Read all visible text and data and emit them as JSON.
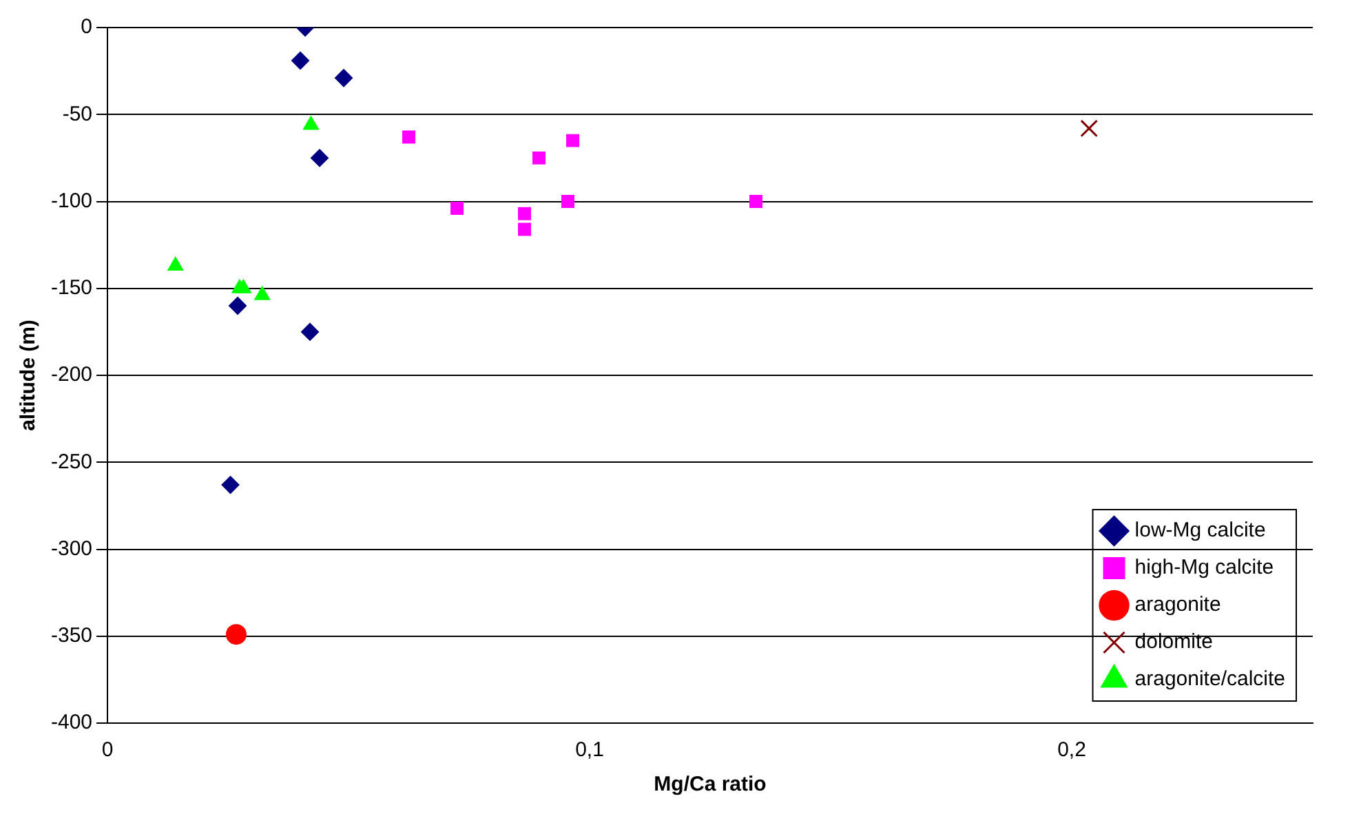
{
  "chart_data": {
    "type": "scatter",
    "xlabel": "Mg/Ca ratio",
    "ylabel": "altitude (m)",
    "xlim": [
      0,
      0.25
    ],
    "xticks": [
      0,
      {
        "value": 0.1,
        "label": "0,1"
      },
      {
        "value": 0.2,
        "label": "0,2"
      }
    ],
    "ylim": [
      -400,
      0
    ],
    "yticks": [
      -400,
      -350,
      -300,
      -250,
      -200,
      -150,
      -100,
      -50,
      0
    ],
    "grid": "y",
    "legend": "bottom right",
    "series": [
      {
        "name": "low-Mg calcite",
        "color": "#000080",
        "marker": "diamond",
        "x": [
          0.041,
          0.04,
          0.049,
          0.044,
          0.027,
          0.042,
          0.0255
        ],
        "values": [
          0,
          -19,
          -29,
          -75,
          -160,
          -175,
          -263
        ]
      },
      {
        "name": "high-Mg calcite",
        "color": "#ff00ff",
        "marker": "square",
        "x": [
          0.0625,
          0.0895,
          0.0965,
          0.0725,
          0.0955,
          0.1345,
          0.0865,
          0.0865
        ],
        "values": [
          -63,
          -75,
          -65,
          -104,
          -100,
          -100,
          -107,
          -116
        ]
      },
      {
        "name": "aragonite",
        "color": "#ff0000",
        "marker": "circle",
        "x": [
          0.0267
        ],
        "values": [
          -349
        ]
      },
      {
        "name": "dolomite",
        "color": "#800000",
        "marker": "cross",
        "x": [
          0.2036
        ],
        "values": [
          -58
        ]
      },
      {
        "name": "aragonite/calcite",
        "color": "#00ff00",
        "marker": "triangle",
        "x": [
          0.0422,
          0.0141,
          0.0274,
          0.0282,
          0.0321
        ],
        "values": [
          -56,
          -137,
          -150,
          -150,
          -154
        ]
      }
    ]
  }
}
